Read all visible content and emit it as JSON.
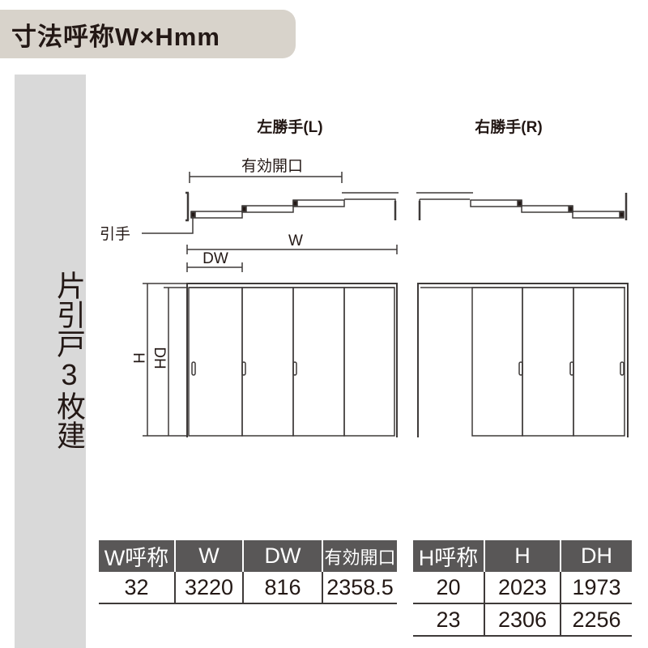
{
  "title": "寸法呼称W×Hmm",
  "side_label": "片引戸3枚建",
  "diagram": {
    "left_title": "左勝手(L)",
    "right_title": "右勝手(R)",
    "effective_opening": "有効開口",
    "pull": "引手",
    "w": "W",
    "dw": "DW",
    "h": "H",
    "dh": "DH"
  },
  "width_table": {
    "headers": [
      "W呼称",
      "W",
      "DW",
      "有効開口"
    ],
    "rows": [
      [
        "32",
        "3220",
        "816",
        "2358.5"
      ]
    ]
  },
  "height_table": {
    "headers": [
      "H呼称",
      "H",
      "DH"
    ],
    "rows": [
      [
        "20",
        "2023",
        "1973"
      ],
      [
        "23",
        "2306",
        "2256"
      ]
    ]
  },
  "colors": {
    "header_bg": "#595757",
    "title_bg": "#d8d3cb",
    "side_bg": "#d9d9d9",
    "line": "#3e3a39"
  }
}
